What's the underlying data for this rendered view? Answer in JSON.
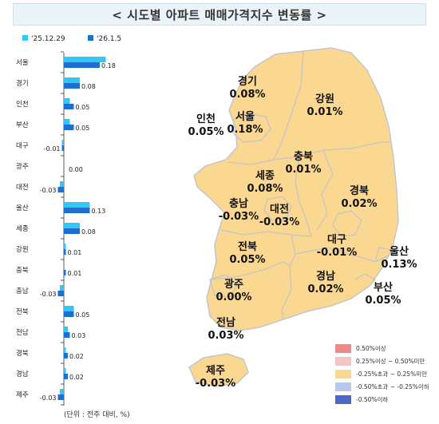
{
  "title": "< 시도별 아파트 매매가격지수 변동률 >",
  "unit_note": "(단위 : 전주 대비, %)",
  "colors": {
    "series_prev": "#33c8f3",
    "series_curr": "#1f6fd0",
    "map_fill": "#fbd892",
    "map_border": "#c5c5c5"
  },
  "chart_data": {
    "type": "bar",
    "orientation": "horizontal",
    "categories": [
      "서울",
      "경기",
      "인천",
      "부산",
      "대구",
      "광주",
      "대전",
      "울산",
      "세종",
      "강원",
      "충북",
      "충남",
      "전북",
      "전남",
      "경북",
      "경남",
      "제주"
    ],
    "series": [
      {
        "name": "'25.12.29",
        "values": [
          0.21,
          0.08,
          0.03,
          0.03,
          -0.01,
          0.0,
          -0.02,
          0.13,
          0.08,
          0.01,
          0.0,
          -0.02,
          0.05,
          0.02,
          0.01,
          0.01,
          -0.02
        ]
      },
      {
        "name": "'26.1.5",
        "values": [
          0.18,
          0.08,
          0.05,
          0.05,
          -0.01,
          0.0,
          -0.03,
          0.13,
          0.08,
          0.01,
          0.01,
          -0.03,
          0.05,
          0.03,
          0.02,
          0.02,
          -0.03
        ]
      }
    ],
    "value_labels": [
      "0.18",
      "0.08",
      "0.05",
      "0.05",
      "-0.01",
      "0.00",
      "-0.03",
      "0.13",
      "0.08",
      "0.01",
      "0.01",
      "-0.03",
      "0.05",
      "0.03",
      "0.02",
      "0.02",
      "-0.03"
    ],
    "legend_position": "top-left",
    "grid": false
  },
  "map": {
    "regions": [
      {
        "name": "경기",
        "value": "0.08%"
      },
      {
        "name": "강원",
        "value": "0.01%"
      },
      {
        "name": "인천",
        "value": "0.05%"
      },
      {
        "name": "서울",
        "value": "0.18%"
      },
      {
        "name": "충북",
        "value": "0.01%"
      },
      {
        "name": "세종",
        "value": "0.08%"
      },
      {
        "name": "경북",
        "value": "0.02%"
      },
      {
        "name": "충남",
        "value": "-0.03%"
      },
      {
        "name": "대전",
        "value": "-0.03%"
      },
      {
        "name": "전북",
        "value": "0.05%"
      },
      {
        "name": "대구",
        "value": "-0.01%"
      },
      {
        "name": "울산",
        "value": "0.13%"
      },
      {
        "name": "광주",
        "value": "0.00%"
      },
      {
        "name": "경남",
        "value": "0.02%"
      },
      {
        "name": "부산",
        "value": "0.05%"
      },
      {
        "name": "전남",
        "value": "0.03%"
      },
      {
        "name": "제주",
        "value": "-0.03%"
      }
    ],
    "legend": [
      {
        "label": "0.50%이상",
        "color": "#f08a8a"
      },
      {
        "label": "0.25%이상 ~ 0.50%미만",
        "color": "#f8c3c3"
      },
      {
        "label": "-0.25%초과 ~ 0.25%미만",
        "color": "#fbd892"
      },
      {
        "label": "-0.50%초과 ~ -0.25%이하",
        "color": "#b9c9ee"
      },
      {
        "label": "-0.50%이하",
        "color": "#4b68c8"
      }
    ]
  }
}
